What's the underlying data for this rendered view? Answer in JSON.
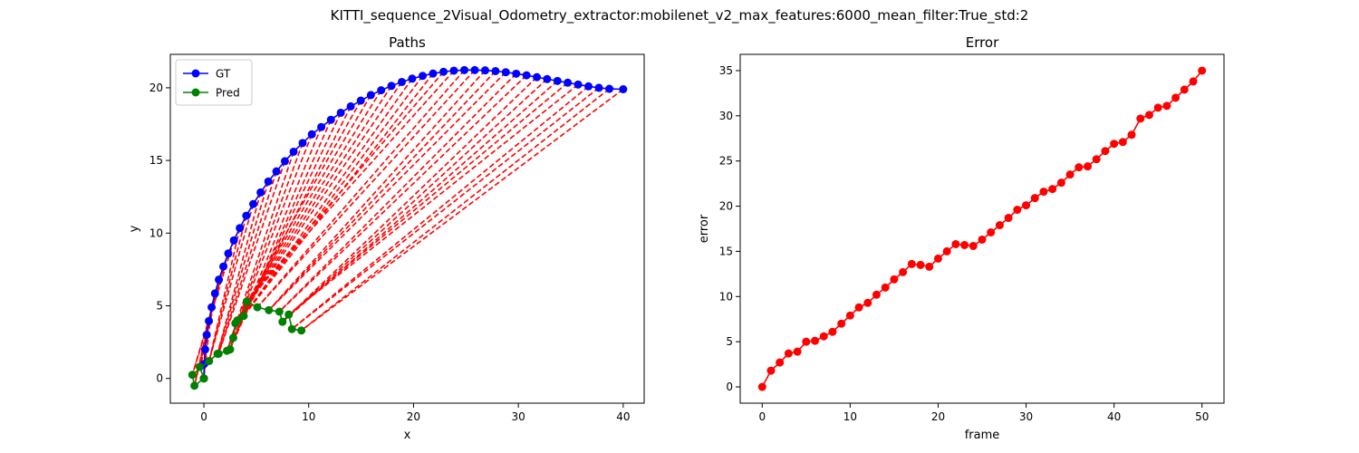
{
  "suptitle": "KITTI_sequence_2Visual_Odometry_extractor:mobilenet_v2_max_features:6000_mean_filter:True_std:2",
  "chart_data": [
    {
      "type": "line",
      "title": "Paths",
      "xlabel": "x",
      "ylabel": "y",
      "xlim": [
        -3.2,
        42.0
      ],
      "ylim": [
        -1.7,
        22.3
      ],
      "xticks": [
        0,
        10,
        20,
        30,
        40
      ],
      "yticks": [
        0,
        5,
        10,
        15,
        20
      ],
      "grid": false,
      "legend": "top-left",
      "series": [
        {
          "name": "GT",
          "color": "#0000ff",
          "marker": "circle",
          "points": [
            [
              0,
              0
            ],
            [
              0.03,
              1.0
            ],
            [
              0.12,
              2.0
            ],
            [
              0.27,
              3.0
            ],
            [
              0.48,
              3.95
            ],
            [
              0.74,
              4.9
            ],
            [
              1.06,
              5.85
            ],
            [
              1.43,
              6.8
            ],
            [
              1.86,
              7.7
            ],
            [
              2.33,
              8.6
            ],
            [
              2.86,
              9.5
            ],
            [
              3.43,
              10.35
            ],
            [
              4.05,
              11.2
            ],
            [
              4.71,
              12.0
            ],
            [
              5.41,
              12.8
            ],
            [
              6.15,
              13.55
            ],
            [
              6.92,
              14.25
            ],
            [
              7.73,
              14.95
            ],
            [
              8.56,
              15.6
            ],
            [
              9.42,
              16.2
            ],
            [
              10.3,
              16.8
            ],
            [
              11.2,
              17.3
            ],
            [
              12.12,
              17.8
            ],
            [
              13.06,
              18.28
            ],
            [
              14.01,
              18.72
            ],
            [
              14.97,
              19.12
            ],
            [
              15.93,
              19.5
            ],
            [
              16.91,
              19.83
            ],
            [
              17.89,
              20.13
            ],
            [
              18.88,
              20.4
            ],
            [
              19.87,
              20.63
            ],
            [
              20.87,
              20.82
            ],
            [
              21.86,
              20.98
            ],
            [
              22.86,
              21.1
            ],
            [
              23.85,
              21.18
            ],
            [
              24.85,
              21.22
            ],
            [
              25.84,
              21.22
            ],
            [
              26.83,
              21.2
            ],
            [
              27.82,
              21.15
            ],
            [
              28.8,
              21.07
            ],
            [
              29.79,
              20.97
            ],
            [
              30.78,
              20.86
            ],
            [
              31.76,
              20.73
            ],
            [
              32.74,
              20.6
            ],
            [
              33.73,
              20.47
            ],
            [
              34.71,
              20.35
            ],
            [
              35.7,
              20.22
            ],
            [
              36.69,
              20.1
            ],
            [
              37.68,
              20.0
            ],
            [
              38.68,
              19.93
            ],
            [
              40.0,
              19.9
            ]
          ]
        },
        {
          "name": "Pred",
          "color": "#008000",
          "marker": "circle",
          "points": [
            [
              0,
              0
            ],
            [
              -0.4,
              0.8
            ],
            [
              0,
              0
            ],
            [
              -0.9,
              -0.5
            ],
            [
              -1.1,
              0.25
            ],
            [
              0.5,
              1.2
            ],
            [
              1.3,
              1.7
            ],
            [
              1.4,
              1.7
            ],
            [
              2.2,
              1.9
            ],
            [
              2.5,
              2.0
            ],
            [
              2.8,
              2.8
            ],
            [
              3.0,
              3.8
            ],
            [
              3.2,
              4.0
            ],
            [
              3.8,
              4.3
            ],
            [
              4.1,
              5.3
            ],
            [
              5.1,
              4.9
            ],
            [
              6.2,
              4.7
            ],
            [
              7.2,
              4.6
            ],
            [
              7.5,
              3.9
            ],
            [
              8.1,
              4.4
            ],
            [
              8.4,
              3.4
            ],
            [
              9.3,
              3.3
            ]
          ]
        }
      ]
    },
    {
      "type": "line",
      "title": "Error",
      "xlabel": "frame",
      "ylabel": "error",
      "xlim": [
        -2.5,
        52.5
      ],
      "ylim": [
        -1.8,
        36.8
      ],
      "xticks": [
        0,
        10,
        20,
        30,
        40,
        50
      ],
      "yticks": [
        0,
        5,
        10,
        15,
        20,
        25,
        30,
        35
      ],
      "grid": false,
      "series": [
        {
          "color": "#ff0000",
          "marker": "circle",
          "x": [
            0,
            1,
            2,
            3,
            4,
            5,
            6,
            7,
            8,
            9,
            10,
            11,
            12,
            13,
            14,
            15,
            16,
            17,
            18,
            19,
            20,
            21,
            22,
            23,
            24,
            25,
            26,
            27,
            28,
            29,
            30,
            31,
            32,
            33,
            34,
            35,
            36,
            37,
            38,
            39,
            40,
            41,
            42,
            43,
            44,
            45,
            46,
            47,
            48,
            49,
            50
          ],
          "values": [
            0,
            1.8,
            2.7,
            3.7,
            3.9,
            5.0,
            5.1,
            5.6,
            6.1,
            7.0,
            7.9,
            8.8,
            9.3,
            10.2,
            11.0,
            11.9,
            12.7,
            13.6,
            13.5,
            13.3,
            14.2,
            15.0,
            15.8,
            15.7,
            15.6,
            16.3,
            17.1,
            17.9,
            18.7,
            19.6,
            20.1,
            20.9,
            21.6,
            21.9,
            22.6,
            23.5,
            24.3,
            24.4,
            25.2,
            26.1,
            26.9,
            27.1,
            27.9,
            29.7,
            30.1,
            30.9,
            31.1,
            32.0,
            32.9,
            33.8,
            35.0
          ]
        }
      ]
    }
  ]
}
